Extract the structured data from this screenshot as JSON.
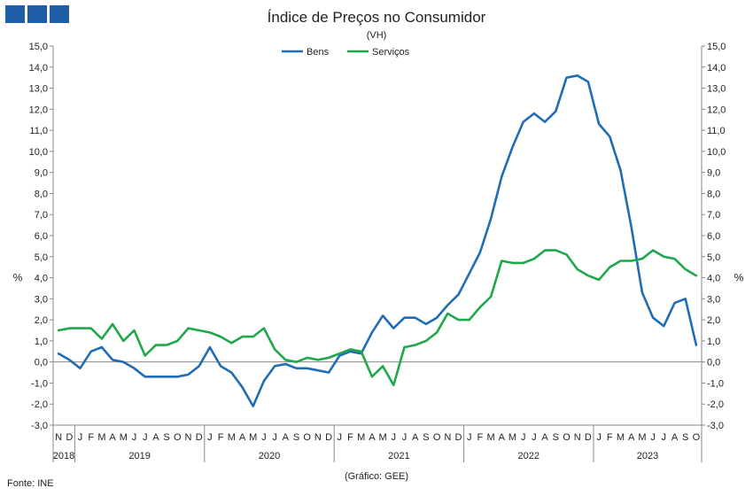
{
  "title": "Índice de Preços no Consumidor",
  "subtitle": "(VH)",
  "source": "Fonte: INE",
  "note": "(Gráfico: GEE)",
  "colors": {
    "bens": "#1f6db5",
    "servicos": "#1fa84a",
    "axis": "#888888",
    "grid": "#bfbfbf"
  },
  "chart_data": {
    "type": "line",
    "title": "Índice de Preços no Consumidor",
    "subtitle": "(VH)",
    "ylabel": "%",
    "ylim": [
      -3,
      15
    ],
    "yticks": [
      "-3,0",
      "-2,0",
      "-1,0",
      "0,0",
      "1,0",
      "2,0",
      "3,0",
      "4,0",
      "5,0",
      "6,0",
      "7,0",
      "8,0",
      "9,0",
      "10,0",
      "11,0",
      "12,0",
      "13,0",
      "14,0",
      "15,0"
    ],
    "grid": false,
    "legend": "top-center",
    "x_month_labels": [
      "N",
      "D",
      "J",
      "F",
      "M",
      "A",
      "M",
      "J",
      "J",
      "A",
      "S",
      "O",
      "N",
      "D",
      "J",
      "F",
      "M",
      "A",
      "M",
      "J",
      "J",
      "A",
      "S",
      "O",
      "N",
      "D",
      "J",
      "F",
      "M",
      "A",
      "M",
      "J",
      "J",
      "A",
      "S",
      "O",
      "N",
      "D",
      "J",
      "F",
      "M",
      "A",
      "M",
      "J",
      "J",
      "A",
      "S",
      "O",
      "N",
      "D",
      "J",
      "F",
      "M",
      "A",
      "M",
      "J",
      "J",
      "A",
      "S",
      "O"
    ],
    "x_year_labels": [
      {
        "label": "2018",
        "start": 0,
        "end": 1
      },
      {
        "label": "2019",
        "start": 2,
        "end": 13
      },
      {
        "label": "2020",
        "start": 14,
        "end": 25
      },
      {
        "label": "2021",
        "start": 26,
        "end": 37
      },
      {
        "label": "2022",
        "start": 38,
        "end": 49
      },
      {
        "label": "2023",
        "start": 50,
        "end": 59
      }
    ],
    "series": [
      {
        "name": "Bens",
        "values": [
          0.4,
          0.1,
          -0.3,
          0.5,
          0.7,
          0.1,
          0.0,
          -0.3,
          -0.7,
          -0.7,
          -0.7,
          -0.7,
          -0.6,
          -0.2,
          0.7,
          -0.2,
          -0.5,
          -1.2,
          -2.1,
          -0.9,
          -0.2,
          -0.1,
          -0.3,
          -0.3,
          -0.4,
          -0.5,
          0.3,
          0.5,
          0.4,
          1.4,
          2.2,
          1.6,
          2.1,
          2.1,
          1.8,
          2.1,
          2.7,
          3.2,
          4.2,
          5.2,
          6.8,
          8.8,
          10.2,
          11.4,
          11.8,
          11.4,
          11.9,
          13.5,
          13.6,
          13.3,
          11.3,
          10.7,
          9.1,
          6.4,
          3.3,
          2.1,
          1.7,
          2.8,
          3.0,
          0.8
        ]
      },
      {
        "name": "Serviços",
        "values": [
          1.5,
          1.6,
          1.6,
          1.6,
          1.1,
          1.8,
          1.0,
          1.5,
          0.3,
          0.8,
          0.8,
          1.0,
          1.6,
          1.5,
          1.4,
          1.2,
          0.9,
          1.2,
          1.2,
          1.6,
          0.6,
          0.1,
          0.0,
          0.2,
          0.1,
          0.2,
          0.4,
          0.6,
          0.5,
          -0.7,
          -0.2,
          -1.1,
          0.7,
          0.8,
          1.0,
          1.4,
          2.3,
          2.0,
          2.0,
          2.6,
          3.1,
          4.8,
          4.7,
          4.7,
          4.9,
          5.3,
          5.3,
          5.1,
          4.4,
          4.1,
          3.9,
          4.5,
          4.8,
          4.8,
          4.9,
          5.3,
          5.0,
          4.9,
          4.4,
          4.1
        ]
      }
    ]
  }
}
